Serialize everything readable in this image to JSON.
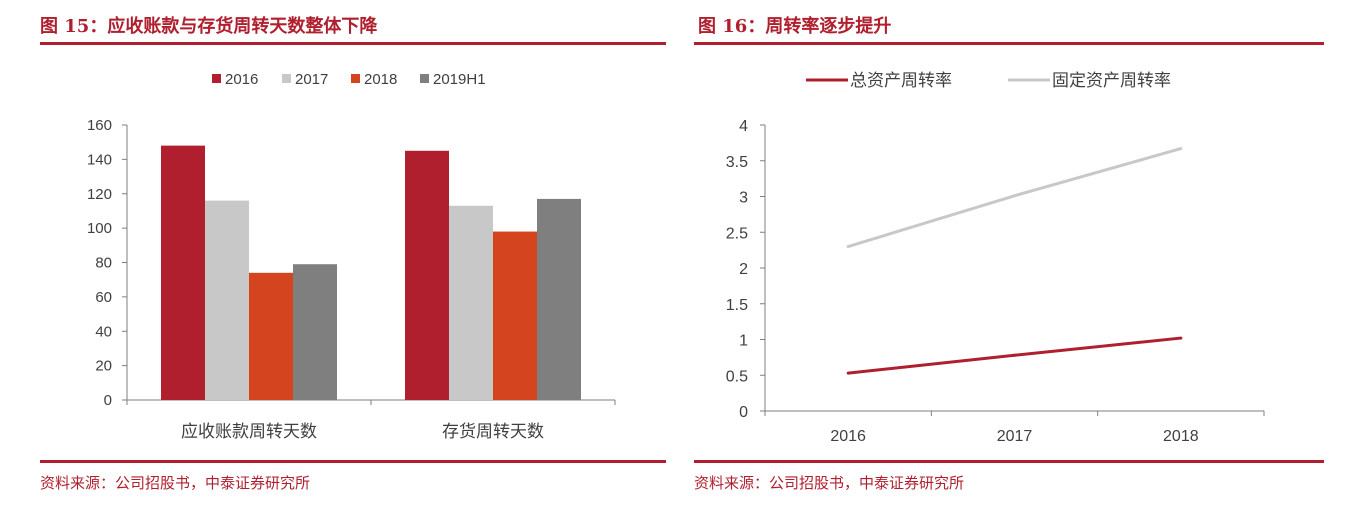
{
  "left": {
    "title": "图 15：应收账款与存货周转天数整体下降",
    "source": "资料来源：公司招股书，中泰证券研究所"
  },
  "right": {
    "title": "图 16：周转率逐步提升",
    "source": "资料来源：公司招股书，中泰证券研究所"
  },
  "chart_data": [
    {
      "type": "bar",
      "categories": [
        "应收账款周转天数",
        "存货周转天数"
      ],
      "series": [
        {
          "name": "2016",
          "values": [
            148,
            145
          ],
          "color": "#b01f2e"
        },
        {
          "name": "2017",
          "values": [
            116,
            113
          ],
          "color": "#c8c8c8"
        },
        {
          "name": "2018",
          "values": [
            74,
            98
          ],
          "color": "#d4441f"
        },
        {
          "name": "2019H1",
          "values": [
            79,
            117
          ],
          "color": "#7f7f7f"
        }
      ],
      "ylim": [
        0,
        160
      ],
      "yticks": [
        "0",
        "20",
        "40",
        "60",
        "80",
        "100",
        "120",
        "140",
        "160"
      ],
      "legend": "top",
      "grid": false
    },
    {
      "type": "line",
      "x": [
        "2016",
        "2017",
        "2018"
      ],
      "series": [
        {
          "name": "总资产周转率",
          "values": [
            0.53,
            0.78,
            1.02
          ],
          "color": "#b01f2e"
        },
        {
          "name": "固定资产周转率",
          "values": [
            2.3,
            3.01,
            3.67
          ],
          "color": "#c8c8c8"
        }
      ],
      "ylim": [
        0,
        4
      ],
      "yticks": [
        "0",
        "0.5",
        "1",
        "1.5",
        "2",
        "2.5",
        "3",
        "3.5",
        "4"
      ],
      "legend": "top",
      "grid": false
    }
  ]
}
